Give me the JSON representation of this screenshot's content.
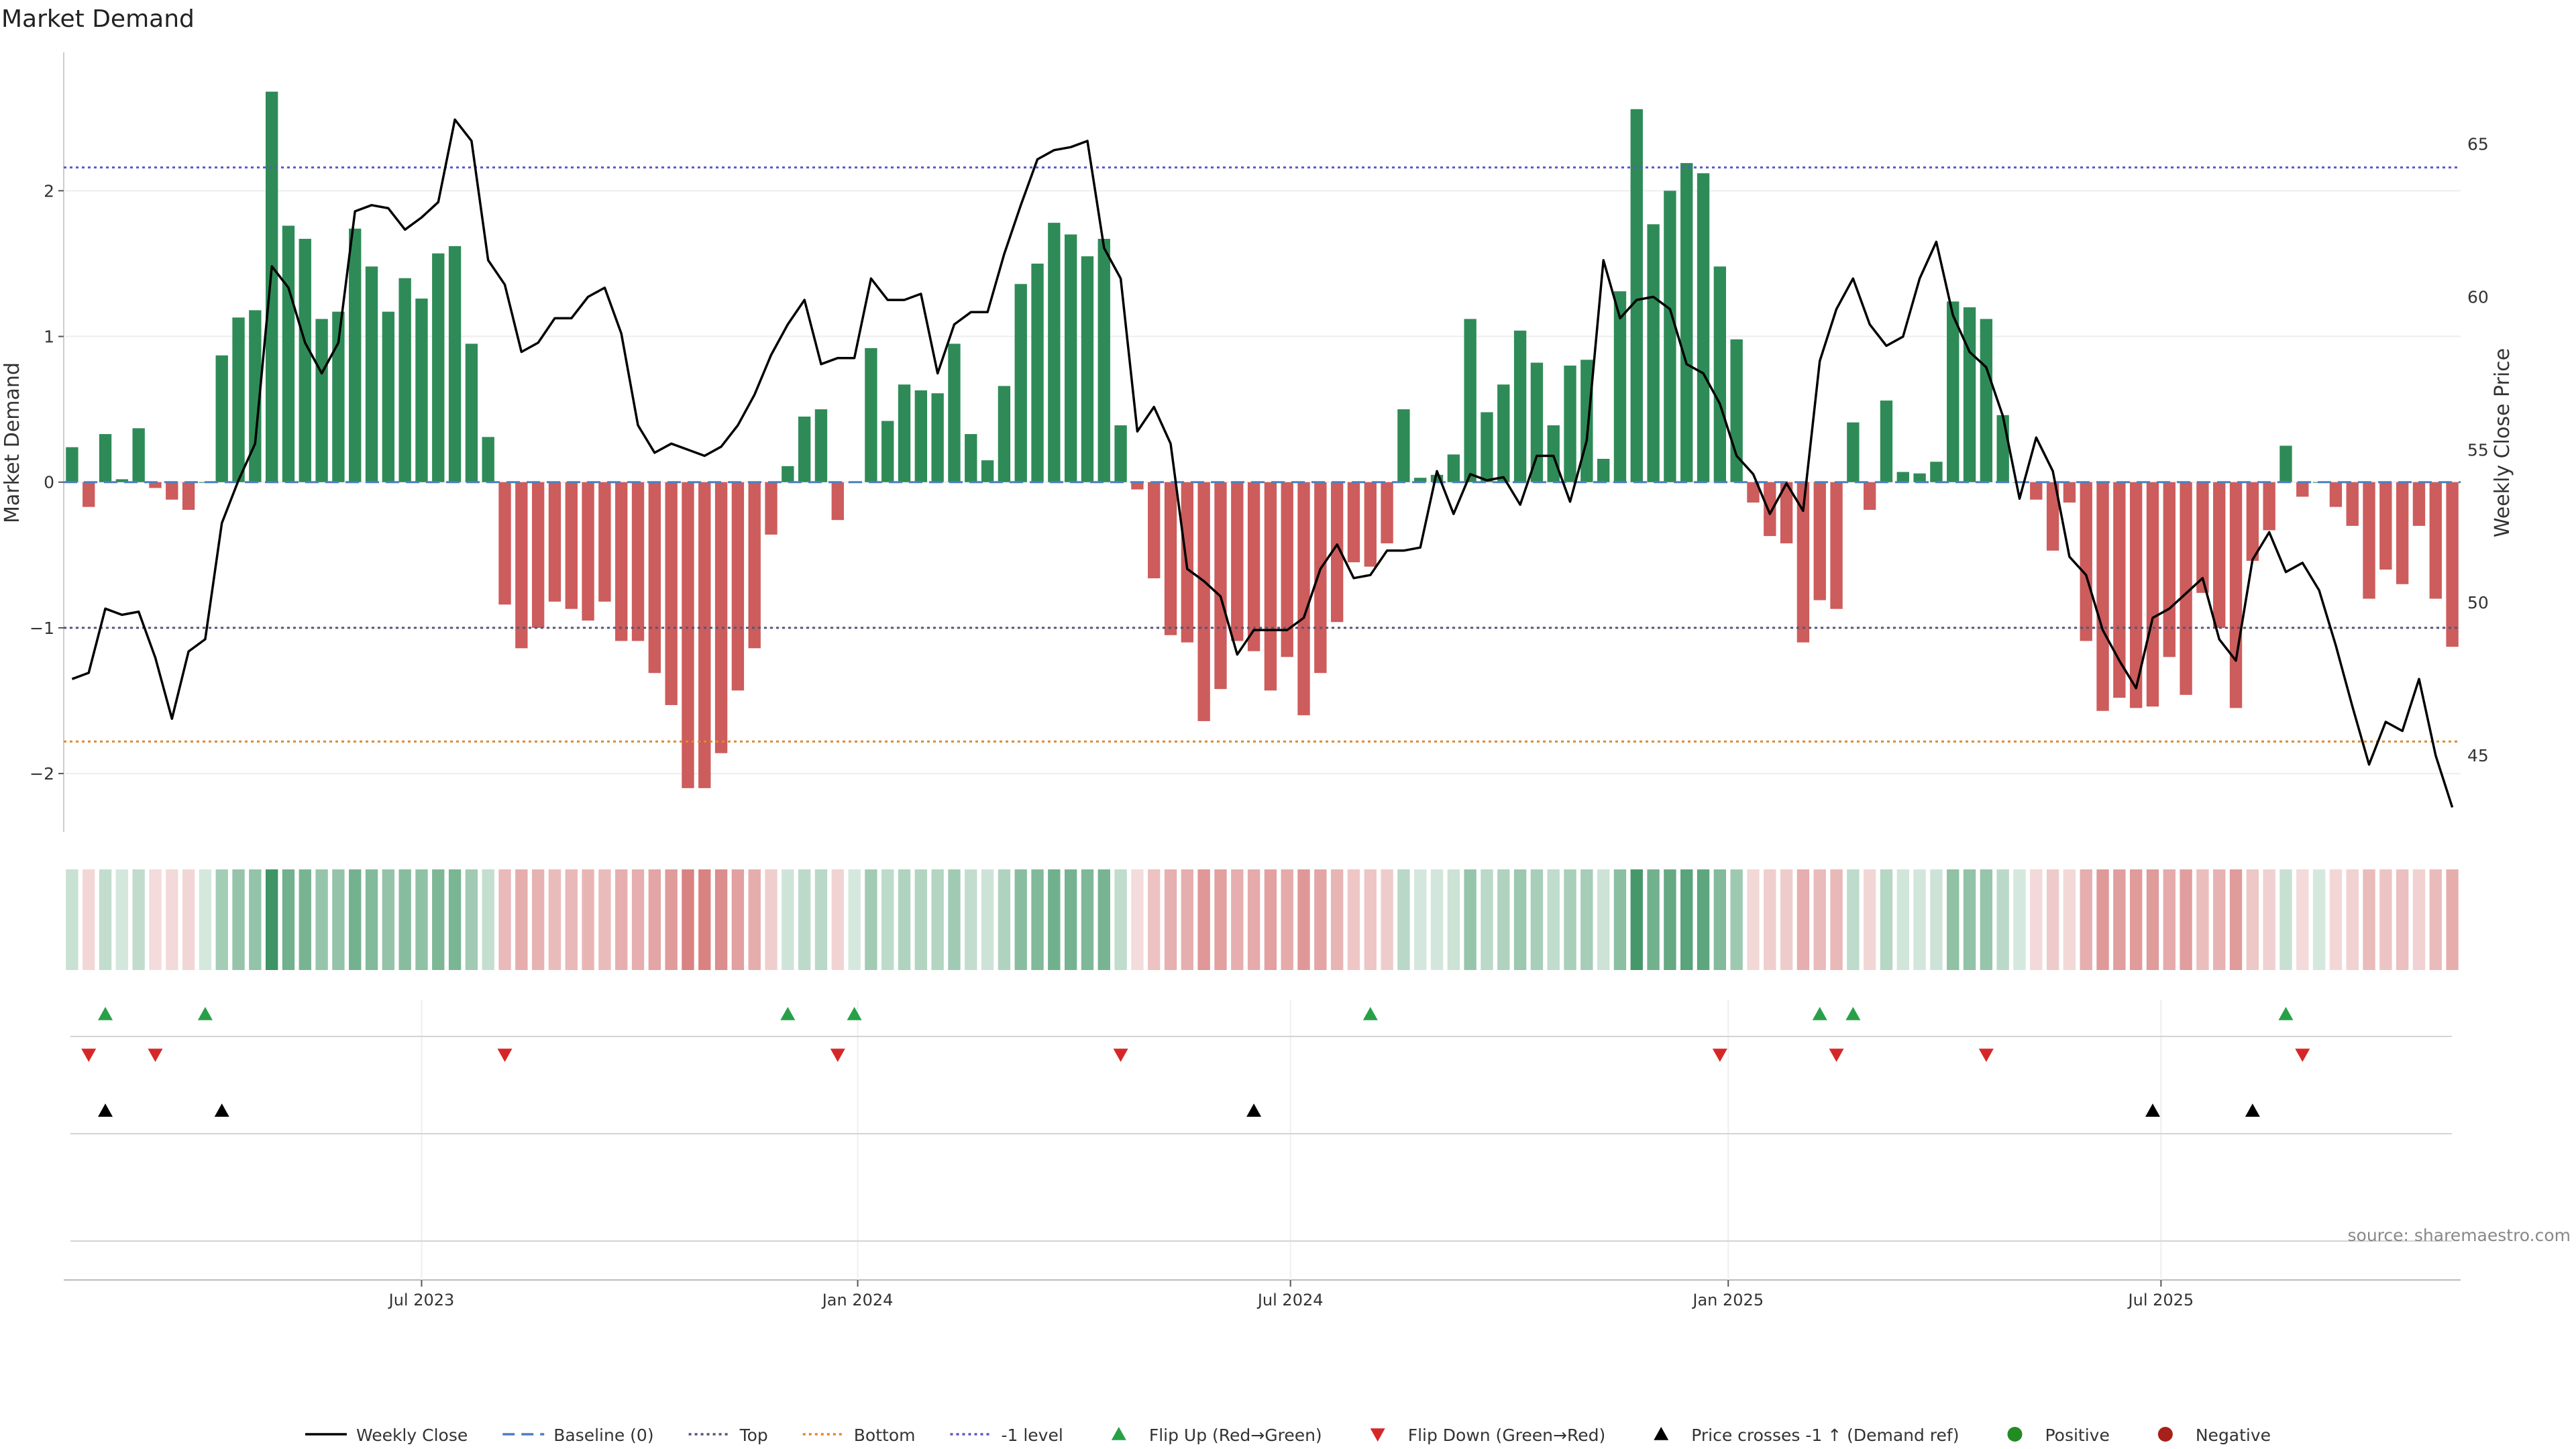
{
  "chart_data": {
    "type": "bar+line",
    "title": "Market Demand",
    "ylabel_left": "Market Demand",
    "ylabel_right": "Weekly Close Price",
    "ylim_left": [
      -2.4,
      2.95
    ],
    "ylim_right": [
      42.5,
      68
    ],
    "yticks_left": [
      2,
      1,
      0,
      -1,
      -2
    ],
    "yticks_left_labels": [
      "2",
      "1",
      "0",
      "−1",
      "−2"
    ],
    "yticks_right": [
      65,
      60,
      55,
      50,
      45
    ],
    "yticks_right_labels": [
      "65",
      "60",
      "55",
      "50",
      "45"
    ],
    "reference_lines": {
      "top": 2.16,
      "bottom": -1.78,
      "minus1": -1.0,
      "baseline": 0
    },
    "date_ticks": [
      {
        "label": "Jul 2023",
        "week": 21.5
      },
      {
        "label": "Jan 2024",
        "week": 47.7
      },
      {
        "label": "Jul 2024",
        "week": 73.7
      },
      {
        "label": "Jan 2025",
        "week": 100
      },
      {
        "label": "Jul 2025",
        "week": 126
      }
    ],
    "demand": [
      0.24,
      -0.17,
      0.33,
      0.02,
      0.37,
      -0.04,
      -0.12,
      -0.19,
      0.0,
      0.87,
      1.13,
      1.18,
      2.68,
      1.76,
      1.67,
      1.12,
      1.17,
      1.74,
      1.48,
      1.17,
      1.4,
      1.26,
      1.57,
      1.62,
      0.95,
      0.31,
      -0.84,
      -1.14,
      -1.0,
      -0.82,
      -0.87,
      -0.95,
      -0.82,
      -1.09,
      -1.09,
      -1.31,
      -1.53,
      -2.1,
      -2.1,
      -1.86,
      -1.43,
      -1.14,
      -0.36,
      0.11,
      0.45,
      0.5,
      -0.26,
      0.0,
      0.92,
      0.42,
      0.67,
      0.63,
      0.61,
      0.95,
      0.33,
      0.15,
      0.66,
      1.36,
      1.5,
      1.78,
      1.7,
      1.55,
      1.67,
      0.39,
      -0.05,
      -0.66,
      -1.05,
      -1.1,
      -1.64,
      -1.42,
      -1.09,
      -1.16,
      -1.43,
      -1.2,
      -1.6,
      -1.31,
      -0.96,
      -0.55,
      -0.58,
      -0.42,
      0.5,
      0.03,
      0.05,
      0.19,
      1.12,
      0.48,
      0.67,
      1.04,
      0.82,
      0.39,
      0.8,
      0.84,
      0.16,
      1.31,
      2.56,
      1.77,
      2.0,
      2.19,
      2.12,
      1.48,
      0.98,
      -0.14,
      -0.37,
      -0.42,
      -1.1,
      -0.81,
      -0.87,
      0.41,
      -0.19,
      0.56,
      0.07,
      0.06,
      0.14,
      1.24,
      1.2,
      1.12,
      0.46,
      0.0,
      -0.12,
      -0.47,
      -0.14,
      -1.09,
      -1.57,
      -1.48,
      -1.55,
      -1.54,
      -1.2,
      -1.46,
      -0.76,
      -1.0,
      -1.55,
      -0.54,
      -0.33,
      0.25,
      -0.1,
      0.0,
      -0.17,
      -0.3,
      -0.8,
      -0.6,
      -0.7,
      -0.3,
      -0.8,
      -1.13
    ],
    "weekly_close": [
      47.5,
      47.7,
      49.8,
      49.6,
      49.7,
      48.2,
      46.2,
      48.4,
      48.8,
      52.6,
      54.0,
      55.2,
      61.0,
      60.3,
      58.5,
      57.5,
      58.5,
      62.8,
      63.0,
      62.9,
      62.2,
      62.6,
      63.1,
      65.8,
      65.1,
      61.2,
      60.4,
      58.2,
      58.5,
      59.3,
      59.3,
      60.0,
      60.3,
      58.8,
      55.8,
      54.9,
      55.2,
      55.0,
      54.8,
      55.1,
      55.8,
      56.8,
      58.1,
      59.1,
      59.9,
      57.8,
      58.0,
      58.0,
      60.6,
      59.9,
      59.9,
      60.1,
      57.5,
      59.1,
      59.5,
      59.5,
      61.4,
      63.0,
      64.5,
      64.8,
      64.9,
      65.1,
      61.6,
      60.6,
      55.6,
      56.4,
      55.2,
      51.1,
      50.7,
      50.2,
      48.3,
      49.1,
      49.1,
      49.1,
      49.5,
      51.1,
      51.9,
      50.8,
      50.9,
      51.7,
      51.7,
      51.8,
      54.3,
      52.9,
      54.2,
      54.0,
      54.1,
      53.2,
      54.8,
      54.8,
      53.3,
      55.3,
      61.2,
      59.3,
      59.9,
      60.0,
      59.6,
      57.8,
      57.5,
      56.5,
      54.8,
      54.2,
      52.9,
      53.9,
      53.0,
      57.9,
      59.6,
      60.6,
      59.1,
      58.4,
      58.7,
      60.6,
      61.8,
      59.4,
      58.2,
      57.7,
      56.1,
      53.4,
      55.4,
      54.3,
      51.5,
      50.9,
      49.1,
      48.1,
      47.2,
      49.5,
      49.8,
      50.3,
      50.8,
      48.8,
      48.1,
      51.4,
      52.3,
      51.0,
      51.3,
      50.4,
      48.6,
      46.6,
      44.7,
      46.1,
      45.8,
      47.5,
      45.0,
      43.3
    ],
    "flip_up_weeks": [
      2,
      8,
      43,
      47,
      78,
      105,
      107,
      133
    ],
    "flip_down_weeks": [
      1,
      5,
      26,
      46,
      63,
      99,
      106,
      115,
      134
    ],
    "price_cross_weeks": [
      2,
      9,
      71,
      125,
      131
    ]
  },
  "source_label": "source: sharemaestro.com",
  "colors": {
    "positive": "#2e8b57",
    "negative": "#cd5c5c",
    "price_line": "#000000",
    "top_line": "#5b57c9",
    "bottom_line": "#e08a2c",
    "minus1_line": "#555577",
    "baseline": "#4a7fc1",
    "flip_up_marker": "#27a048",
    "flip_down_marker": "#d62728",
    "cross_marker": "#000000",
    "positive_dot": "#228b22",
    "negative_dot": "#a8201a"
  },
  "legend": [
    {
      "label": "Weekly Close",
      "kind": "line"
    },
    {
      "label": "Baseline (0)",
      "kind": "dash-blue"
    },
    {
      "label": "Top",
      "kind": "dot-purple"
    },
    {
      "label": "Bottom",
      "kind": "dot-orange"
    },
    {
      "label": "-1 level",
      "kind": "dot-gray"
    },
    {
      "label": "Flip Up (Red→Green)",
      "kind": "tri-up-green"
    },
    {
      "label": "Flip Down (Green→Red)",
      "kind": "tri-down-red"
    },
    {
      "label": "Price crosses -1 ↑ (Demand ref)",
      "kind": "tri-up-black"
    },
    {
      "label": "Positive",
      "kind": "dot-green"
    },
    {
      "label": "Negative",
      "kind": "dot-darkred"
    }
  ]
}
